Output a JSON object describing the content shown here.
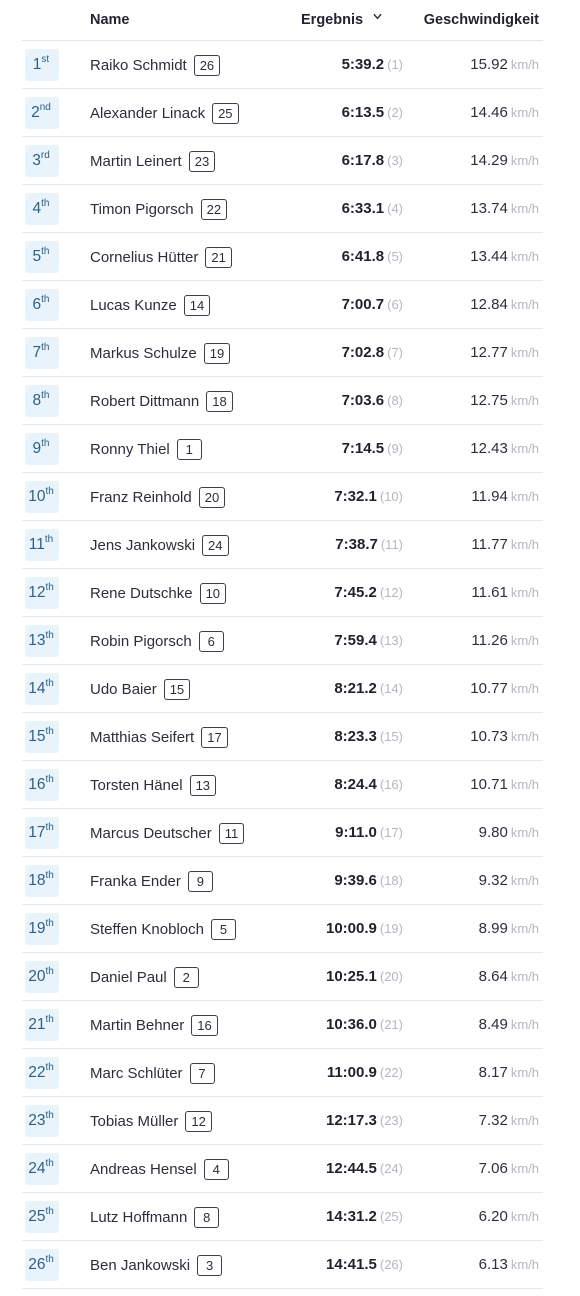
{
  "header": {
    "name": "Name",
    "result": "Ergebnis",
    "speed": "Geschwindigkeit"
  },
  "rows": [
    {
      "rank": "1",
      "suffix": "st",
      "name": "Raiko Schmidt",
      "bib": "26",
      "time": "5:39.2",
      "place": "(1)",
      "speed": "15.92",
      "unit": "km/h"
    },
    {
      "rank": "2",
      "suffix": "nd",
      "name": "Alexander Linack",
      "bib": "25",
      "time": "6:13.5",
      "place": "(2)",
      "speed": "14.46",
      "unit": "km/h"
    },
    {
      "rank": "3",
      "suffix": "rd",
      "name": "Martin Leinert",
      "bib": "23",
      "time": "6:17.8",
      "place": "(3)",
      "speed": "14.29",
      "unit": "km/h"
    },
    {
      "rank": "4",
      "suffix": "th",
      "name": "Timon Pigorsch",
      "bib": "22",
      "time": "6:33.1",
      "place": "(4)",
      "speed": "13.74",
      "unit": "km/h"
    },
    {
      "rank": "5",
      "suffix": "th",
      "name": "Cornelius Hütter",
      "bib": "21",
      "time": "6:41.8",
      "place": "(5)",
      "speed": "13.44",
      "unit": "km/h"
    },
    {
      "rank": "6",
      "suffix": "th",
      "name": "Lucas Kunze",
      "bib": "14",
      "time": "7:00.7",
      "place": "(6)",
      "speed": "12.84",
      "unit": "km/h"
    },
    {
      "rank": "7",
      "suffix": "th",
      "name": "Markus Schulze",
      "bib": "19",
      "time": "7:02.8",
      "place": "(7)",
      "speed": "12.77",
      "unit": "km/h"
    },
    {
      "rank": "8",
      "suffix": "th",
      "name": "Robert Dittmann",
      "bib": "18",
      "time": "7:03.6",
      "place": "(8)",
      "speed": "12.75",
      "unit": "km/h"
    },
    {
      "rank": "9",
      "suffix": "th",
      "name": "Ronny Thiel",
      "bib": "1",
      "time": "7:14.5",
      "place": "(9)",
      "speed": "12.43",
      "unit": "km/h"
    },
    {
      "rank": "10",
      "suffix": "th",
      "name": "Franz Reinhold",
      "bib": "20",
      "time": "7:32.1",
      "place": "(10)",
      "speed": "11.94",
      "unit": "km/h"
    },
    {
      "rank": "11",
      "suffix": "th",
      "name": "Jens Jankowski",
      "bib": "24",
      "time": "7:38.7",
      "place": "(11)",
      "speed": "11.77",
      "unit": "km/h"
    },
    {
      "rank": "12",
      "suffix": "th",
      "name": "Rene Dutschke",
      "bib": "10",
      "time": "7:45.2",
      "place": "(12)",
      "speed": "11.61",
      "unit": "km/h"
    },
    {
      "rank": "13",
      "suffix": "th",
      "name": "Robin Pigorsch",
      "bib": "6",
      "time": "7:59.4",
      "place": "(13)",
      "speed": "11.26",
      "unit": "km/h"
    },
    {
      "rank": "14",
      "suffix": "th",
      "name": "Udo Baier",
      "bib": "15",
      "time": "8:21.2",
      "place": "(14)",
      "speed": "10.77",
      "unit": "km/h"
    },
    {
      "rank": "15",
      "suffix": "th",
      "name": "Matthias Seifert",
      "bib": "17",
      "time": "8:23.3",
      "place": "(15)",
      "speed": "10.73",
      "unit": "km/h"
    },
    {
      "rank": "16",
      "suffix": "th",
      "name": "Torsten Hänel",
      "bib": "13",
      "time": "8:24.4",
      "place": "(16)",
      "speed": "10.71",
      "unit": "km/h"
    },
    {
      "rank": "17",
      "suffix": "th",
      "name": "Marcus Deutscher",
      "bib": "11",
      "time": "9:11.0",
      "place": "(17)",
      "speed": "9.80",
      "unit": "km/h"
    },
    {
      "rank": "18",
      "suffix": "th",
      "name": "Franka Ender",
      "bib": "9",
      "time": "9:39.6",
      "place": "(18)",
      "speed": "9.32",
      "unit": "km/h"
    },
    {
      "rank": "19",
      "suffix": "th",
      "name": "Steffen Knobloch",
      "bib": "5",
      "time": "10:00.9",
      "place": "(19)",
      "speed": "8.99",
      "unit": "km/h"
    },
    {
      "rank": "20",
      "suffix": "th",
      "name": "Daniel Paul",
      "bib": "2",
      "time": "10:25.1",
      "place": "(20)",
      "speed": "8.64",
      "unit": "km/h"
    },
    {
      "rank": "21",
      "suffix": "th",
      "name": "Martin Behner",
      "bib": "16",
      "time": "10:36.0",
      "place": "(21)",
      "speed": "8.49",
      "unit": "km/h"
    },
    {
      "rank": "22",
      "suffix": "th",
      "name": "Marc Schlüter",
      "bib": "7",
      "time": "11:00.9",
      "place": "(22)",
      "speed": "8.17",
      "unit": "km/h"
    },
    {
      "rank": "23",
      "suffix": "th",
      "name": "Tobias Müller",
      "bib": "12",
      "time": "12:17.3",
      "place": "(23)",
      "speed": "7.32",
      "unit": "km/h"
    },
    {
      "rank": "24",
      "suffix": "th",
      "name": "Andreas Hensel",
      "bib": "4",
      "time": "12:44.5",
      "place": "(24)",
      "speed": "7.06",
      "unit": "km/h"
    },
    {
      "rank": "25",
      "suffix": "th",
      "name": "Lutz Hoffmann",
      "bib": "8",
      "time": "14:31.2",
      "place": "(25)",
      "speed": "6.20",
      "unit": "km/h"
    },
    {
      "rank": "26",
      "suffix": "th",
      "name": "Ben Jankowski",
      "bib": "3",
      "time": "14:41.5",
      "place": "(26)",
      "speed": "6.13",
      "unit": "km/h"
    }
  ],
  "colors": {
    "rank_bg": "#e8f3fb",
    "rank_text": "#2f5f86",
    "muted": "#b3b7bf",
    "divider": "#e6e8ec"
  },
  "icons": {
    "sort": "chevron-down-icon"
  }
}
